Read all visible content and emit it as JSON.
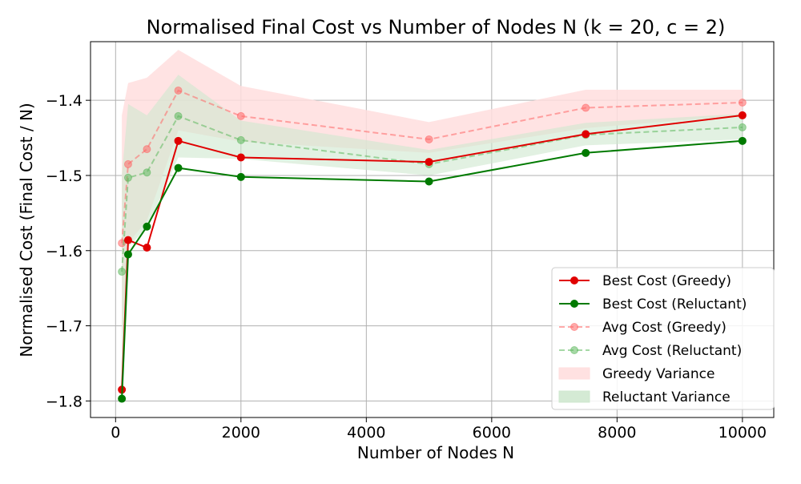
{
  "chart_data": {
    "type": "line",
    "title": "Normalised Final Cost vs Number of Nodes N (k = 20, c = 2)",
    "xlabel": "Number of Nodes N",
    "ylabel": "Normalised Cost (Final Cost / N)",
    "xlim": [
      -400,
      10500
    ],
    "ylim": [
      -1.822,
      -1.322
    ],
    "x_ticks": [
      0,
      2000,
      4000,
      6000,
      8000,
      10000
    ],
    "x_tick_labels": [
      "0",
      "2000",
      "4000",
      "6000",
      "8000",
      "10000"
    ],
    "y_ticks": [
      -1.4,
      -1.5,
      -1.6,
      -1.7,
      -1.8
    ],
    "y_tick_labels": [
      "−1.4",
      "−1.5",
      "−1.6",
      "−1.7",
      "−1.8"
    ],
    "grid": true,
    "legend_position": "lower-right",
    "x": [
      100,
      200,
      500,
      1000,
      2000,
      5000,
      7500,
      10000
    ],
    "series": [
      {
        "name": "Best Cost (Greedy)",
        "color": "#e00000",
        "style": "solid",
        "marker": "circle",
        "alpha": 1.0,
        "values": [
          -1.785,
          -1.586,
          -1.596,
          -1.454,
          -1.476,
          -1.482,
          -1.445,
          -1.42
        ]
      },
      {
        "name": "Best Cost (Reluctant)",
        "color": "#007a00",
        "style": "solid",
        "marker": "circle",
        "alpha": 1.0,
        "values": [
          -1.797,
          -1.605,
          -1.568,
          -1.49,
          -1.502,
          -1.508,
          -1.47,
          -1.454
        ]
      },
      {
        "name": "Avg Cost (Greedy)",
        "color": "#ff6666",
        "style": "dashed",
        "marker": "circle",
        "alpha": 0.55,
        "values": [
          -1.59,
          -1.485,
          -1.465,
          -1.387,
          -1.421,
          -1.452,
          -1.41,
          -1.403
        ]
      },
      {
        "name": "Avg Cost (Reluctant)",
        "color": "#5cb85c",
        "style": "dashed",
        "marker": "circle",
        "alpha": 0.55,
        "values": [
          -1.628,
          -1.503,
          -1.496,
          -1.421,
          -1.453,
          -1.485,
          -1.446,
          -1.436
        ]
      }
    ],
    "bands": [
      {
        "name": "Greedy Variance",
        "color": "#ffdede",
        "opacity": 0.85,
        "upper": [
          -1.42,
          -1.377,
          -1.37,
          -1.333,
          -1.381,
          -1.429,
          -1.386,
          -1.386
        ],
        "lower": [
          -1.72,
          -1.59,
          -1.56,
          -1.44,
          -1.455,
          -1.47,
          -1.437,
          -1.42
        ]
      },
      {
        "name": "Reluctant Variance",
        "color": "#cfe8cf",
        "opacity": 0.6,
        "upper": [
          -1.5,
          -1.405,
          -1.42,
          -1.366,
          -1.427,
          -1.466,
          -1.43,
          -1.418
        ],
        "lower": [
          -1.76,
          -1.595,
          -1.57,
          -1.476,
          -1.478,
          -1.5,
          -1.46,
          -1.452
        ]
      }
    ]
  }
}
